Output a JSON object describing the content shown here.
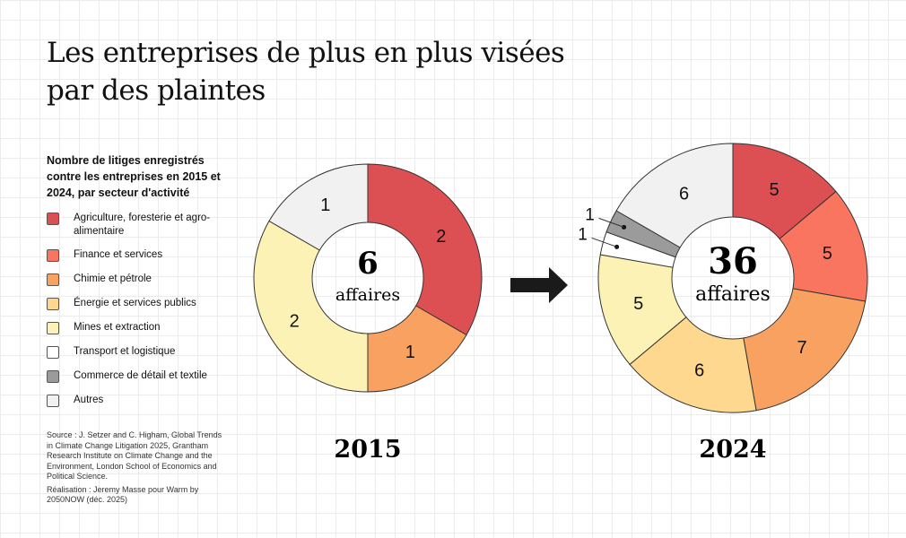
{
  "title": "Les entreprises de plus en plus visées par des plaintes",
  "subtitle": "Nombre de litiges enregistrés contre les entreprises en 2015 et 2024, par secteur d'activité",
  "legend": [
    {
      "label": "Agriculture, foresterie et agro-alimentaire",
      "color": "#dc4f52"
    },
    {
      "label": "Finance et services",
      "color": "#fa7560"
    },
    {
      "label": "Chimie et pétrole",
      "color": "#f9a160"
    },
    {
      "label": "Énergie et services publics",
      "color": "#fdd88e"
    },
    {
      "label": "Mines et extraction",
      "color": "#fdf2b5"
    },
    {
      "label": "Transport et logistique",
      "color": "#ffffff"
    },
    {
      "label": "Commerce de détail et textile",
      "color": "#9b9b9b"
    },
    {
      "label": "Autres",
      "color": "#f1f1f1"
    }
  ],
  "source": "Source : J. Setzer and C. Higham, Global Trends in Climate Change Litigation 2025, Grantham Research Institute on Climate Change and the Environment, London School of Economics and Political Science.",
  "credit": "Réalisation : Jeremy Masse pour Warm by 2050NOW (déc. 2025)",
  "chart_data": [
    {
      "type": "pie",
      "year": "2015",
      "total": "6",
      "total_label": "affaires",
      "categories": [
        "Agriculture, foresterie et agro-alimentaire",
        "Finance et services",
        "Chimie et pétrole",
        "Énergie et services publics",
        "Mines et extraction",
        "Transport et logistique",
        "Commerce de détail et textile",
        "Autres"
      ],
      "values": [
        2,
        0,
        1,
        0,
        2,
        0,
        0,
        1
      ]
    },
    {
      "type": "pie",
      "year": "2024",
      "total": "36",
      "total_label": "affaires",
      "categories": [
        "Agriculture, foresterie et agro-alimentaire",
        "Finance et services",
        "Chimie et pétrole",
        "Énergie et services publics",
        "Mines et extraction",
        "Transport et logistique",
        "Commerce de détail et textile",
        "Autres"
      ],
      "values": [
        5,
        5,
        7,
        6,
        5,
        1,
        1,
        6
      ]
    }
  ]
}
